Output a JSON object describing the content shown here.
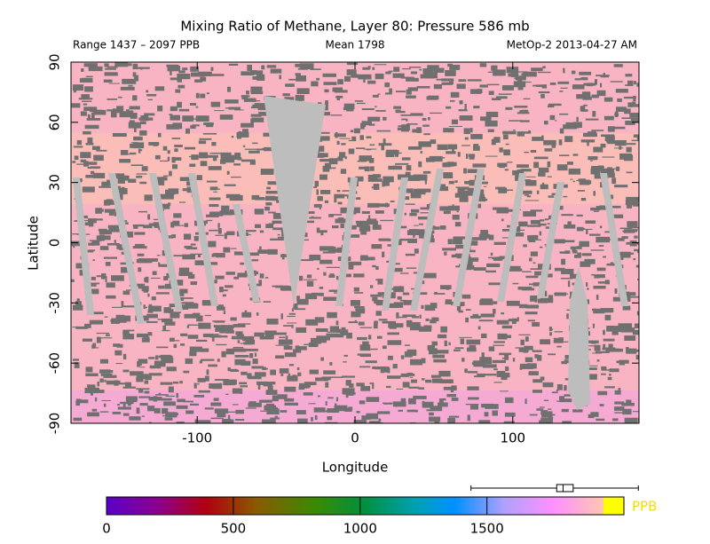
{
  "chart_data": {
    "type": "map",
    "title": "Mixing Ratio of Methane, Layer 80: Pressure 586 mb",
    "subtitle_left": "Range 1437 – 2097 PPB",
    "subtitle_center": "Mean 1798",
    "subtitle_right": "MetOp-2 2013-04-27 AM",
    "xlabel": "Longitude",
    "ylabel": "Latitude",
    "xlim": [
      -180,
      180
    ],
    "ylim": [
      -90,
      90
    ],
    "xticks": [
      -100,
      0,
      100
    ],
    "yticks": [
      90,
      60,
      30,
      0,
      -30,
      -60,
      -90
    ],
    "colorbar": {
      "label": "PPB",
      "lim": [
        0,
        2040
      ],
      "ticks": [
        0,
        500,
        1000,
        1500
      ],
      "box": {
        "min": 1437,
        "q1": 1775,
        "median": 1800,
        "q3": 1840,
        "max": 2097
      }
    }
  }
}
